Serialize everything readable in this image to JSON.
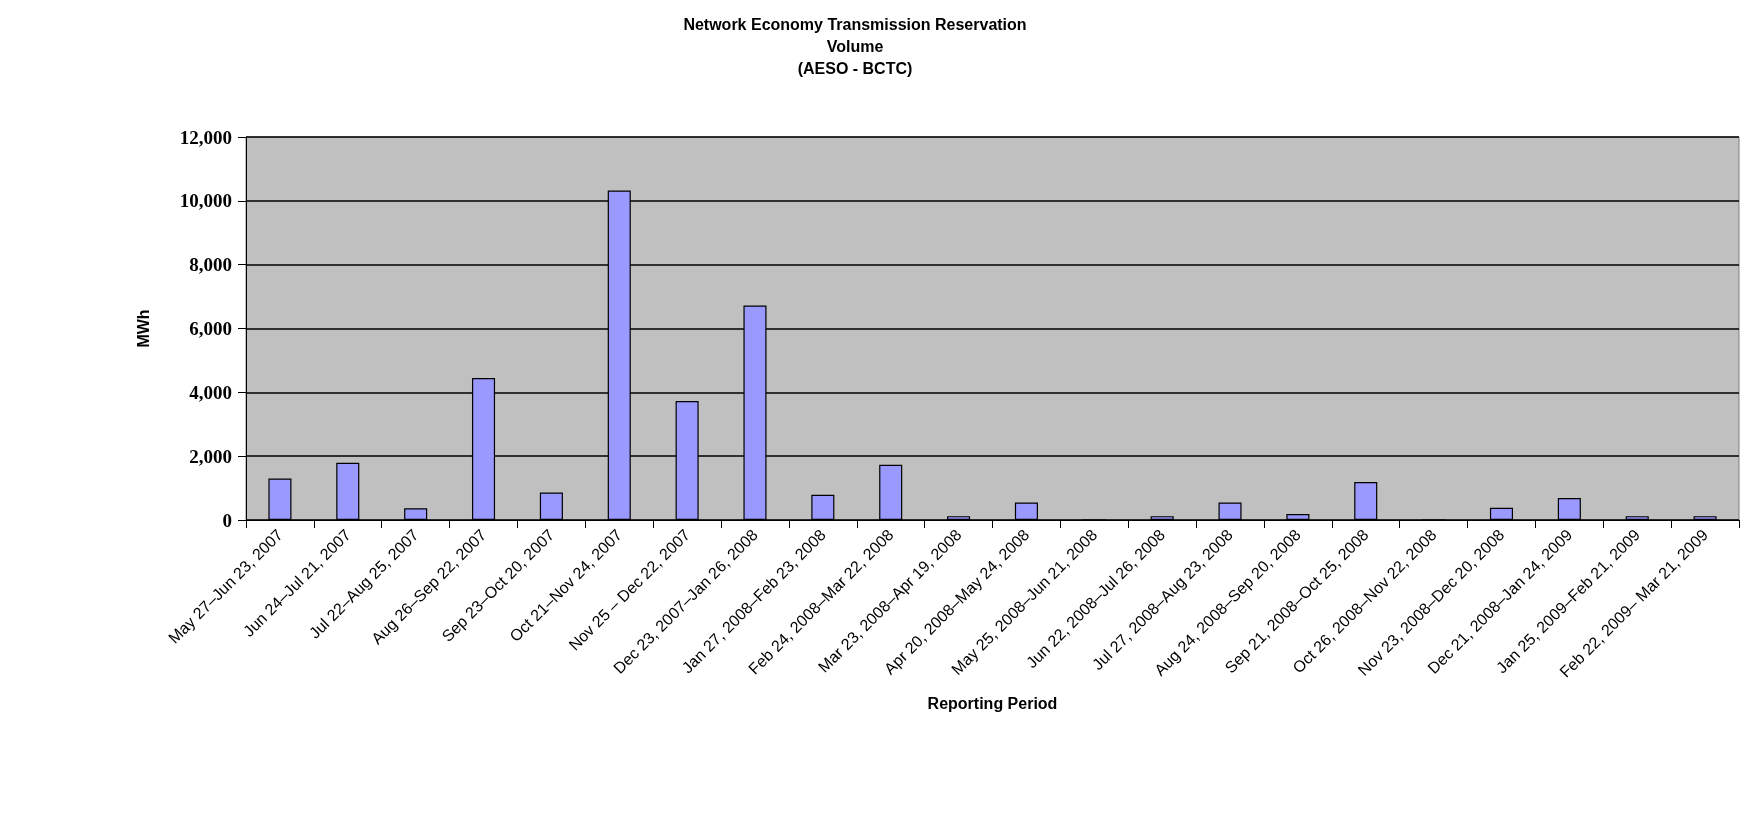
{
  "chart_data": {
    "type": "bar",
    "title": "Network Economy Transmission Reservation\nVolume\n(AESO - BCTC)",
    "xlabel": "Reporting Period",
    "ylabel": "MWh",
    "categories": [
      "May 27–Jun 23, 2007",
      "Jun 24–Jul 21, 2007",
      "Jul 22–Aug 25, 2007",
      "Aug 26–Sep 22, 2007",
      "Sep 23–Oct 20, 2007",
      "Oct 21–Nov 24, 2007",
      "Nov 25 – Dec 22, 2007",
      "Dec 23, 2007–Jan 26, 2008",
      "Jan 27, 2008–Feb 23, 2008",
      "Feb 24, 2008–Mar 22, 2008",
      "Mar 23, 2008–Apr 19, 2008",
      "Apr 20, 2008–May 24, 2008",
      "May 25, 2008–Jun 21, 2008",
      "Jun 22, 2008–Jul 26, 2008",
      "Jul 27, 2008–Aug 23, 2008",
      "Aug 24, 2008–Sep 20, 2008",
      "Sep 21, 2008–Oct 25, 2008",
      "Oct 26, 2008–Nov 22, 2008",
      "Nov 23, 2008–Dec 20, 2008",
      "Dec 21, 2008–Jan 24, 2009",
      "Jan 25, 2009–Feb 21, 2009",
      "Feb 22, 2009– Mar 21, 2009"
    ],
    "values": [
      1300,
      1790,
      370,
      4450,
      860,
      10320,
      3730,
      6720,
      790,
      1730,
      120,
      550,
      0,
      120,
      550,
      190,
      1190,
      0,
      380,
      690,
      120,
      120
    ],
    "color": "#9999ff",
    "ylim": [
      0,
      12000
    ],
    "yticks": [
      0,
      {
        "value": 2000,
        "label": "2,000"
      },
      {
        "value": 4000,
        "label": "4,000"
      },
      {
        "value": 6000,
        "label": "6,000"
      },
      {
        "value": 8000,
        "label": "8,000"
      },
      {
        "value": 10000,
        "label": "10,000"
      },
      {
        "value": 12000,
        "label": "12,000"
      }
    ],
    "grid": "y"
  }
}
